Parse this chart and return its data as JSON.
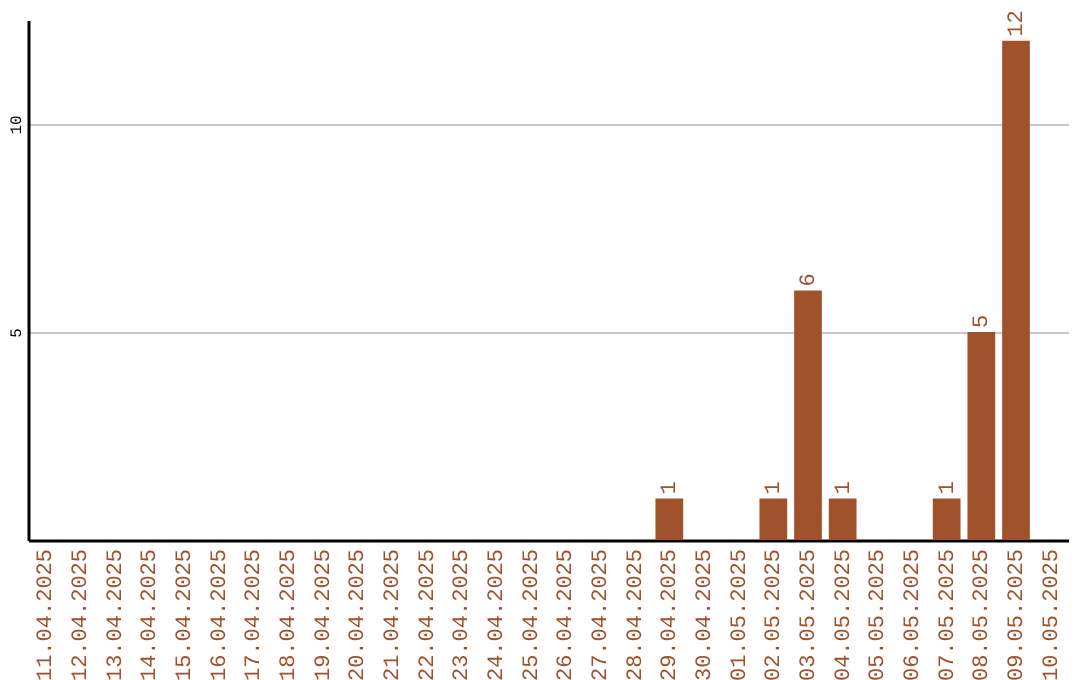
{
  "chart_data": {
    "type": "bar",
    "categories": [
      "11.04.2025",
      "12.04.2025",
      "13.04.2025",
      "14.04.2025",
      "15.04.2025",
      "16.04.2025",
      "17.04.2025",
      "18.04.2025",
      "19.04.2025",
      "20.04.2025",
      "21.04.2025",
      "22.04.2025",
      "23.04.2025",
      "24.04.2025",
      "25.04.2025",
      "26.04.2025",
      "27.04.2025",
      "28.04.2025",
      "29.04.2025",
      "30.04.2025",
      "01.05.2025",
      "02.05.2025",
      "03.05.2025",
      "04.05.2025",
      "05.05.2025",
      "06.05.2025",
      "07.05.2025",
      "08.05.2025",
      "09.05.2025",
      "10.05.2025"
    ],
    "values": [
      0,
      0,
      0,
      0,
      0,
      0,
      0,
      0,
      0,
      0,
      0,
      0,
      0,
      0,
      0,
      0,
      0,
      0,
      1,
      0,
      0,
      1,
      6,
      1,
      0,
      0,
      1,
      5,
      12,
      0
    ],
    "value_labels": [
      null,
      null,
      null,
      null,
      null,
      null,
      null,
      null,
      null,
      null,
      null,
      null,
      null,
      null,
      null,
      null,
      null,
      null,
      "1",
      null,
      null,
      "1",
      "6",
      "1",
      null,
      null,
      "1",
      "5",
      "12",
      null
    ],
    "color": "#a0522d",
    "ylim": [
      0,
      12.5
    ],
    "yticks": [
      5,
      10
    ],
    "grid": "y"
  }
}
